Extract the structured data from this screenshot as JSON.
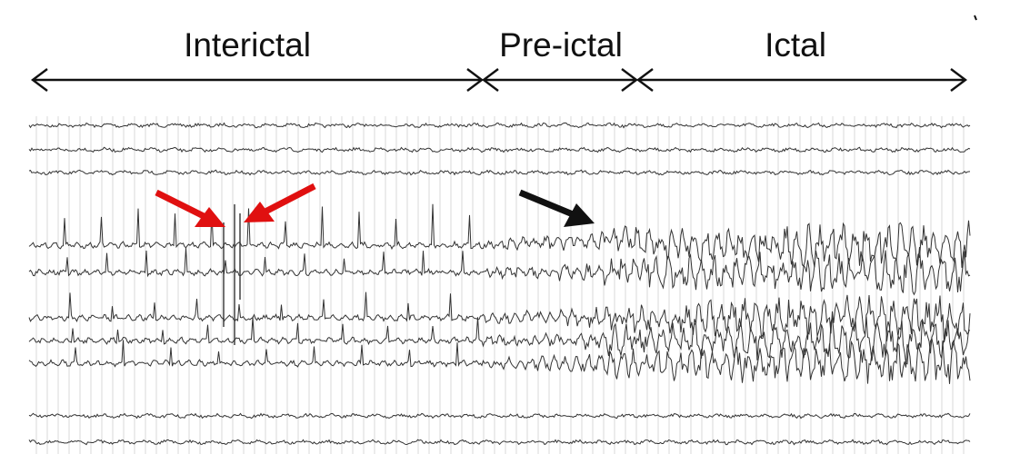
{
  "phases": [
    {
      "label": "Interictal"
    },
    {
      "label": "Pre-ictal"
    },
    {
      "label": "Ictal"
    }
  ],
  "annotations": {
    "spike_arrows": {
      "color": "#e01010",
      "meaning": "interictal spikes"
    },
    "onset_arrow": {
      "color": "#111111",
      "meaning": "seizure onset"
    }
  },
  "recording": {
    "channel_count": 10,
    "trace_color": "#333333"
  }
}
